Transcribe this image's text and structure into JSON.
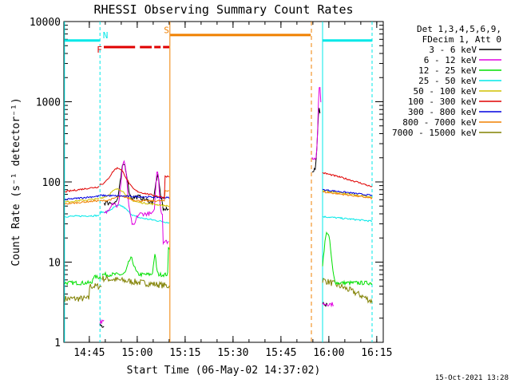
{
  "chart_data": {
    "type": "line",
    "title": "RHESSI Observing Summary Count Rates",
    "xlabel": "Start Time (06-May-02 14:37:02)",
    "ylabel": "Count Rate (s⁻¹ detector⁻¹)",
    "yscale": "log",
    "xlim_minutes_since_14_37_02": [
      0,
      100
    ],
    "ylim": [
      1,
      10000
    ],
    "x_ticks": [
      "14:45",
      "15:00",
      "15:15",
      "15:30",
      "15:45",
      "16:00",
      "16:15"
    ],
    "y_ticks": [
      "1",
      "10",
      "100",
      "1000",
      "10000"
    ],
    "legend_header": [
      "Det 1,3,4,5,6,9,",
      "FDecim 1, Att 0"
    ],
    "legend_placement": "right",
    "series": [
      {
        "name": "3 - 6 keV",
        "color": "#000000"
      },
      {
        "name": "6 - 12 keV",
        "color": "#e000e0"
      },
      {
        "name": "12 - 25 keV",
        "color": "#00e000"
      },
      {
        "name": "25 - 50 keV",
        "color": "#00e8e8"
      },
      {
        "name": "50 - 100 keV",
        "color": "#d0c000"
      },
      {
        "name": "100 - 300 keV",
        "color": "#e00000"
      },
      {
        "name": "300 - 800 keV",
        "color": "#0000e0"
      },
      {
        "name": "800 - 7000 keV",
        "color": "#f08000"
      },
      {
        "name": "7000 - 15000 keV",
        "color": "#808000"
      }
    ],
    "annotations": [
      {
        "label": "N",
        "color": "#00e8e8"
      },
      {
        "label": "F",
        "color": "#e00000"
      },
      {
        "label": "S",
        "color": "#f08000"
      }
    ],
    "footer": "15-Oct-2021 13:28"
  }
}
